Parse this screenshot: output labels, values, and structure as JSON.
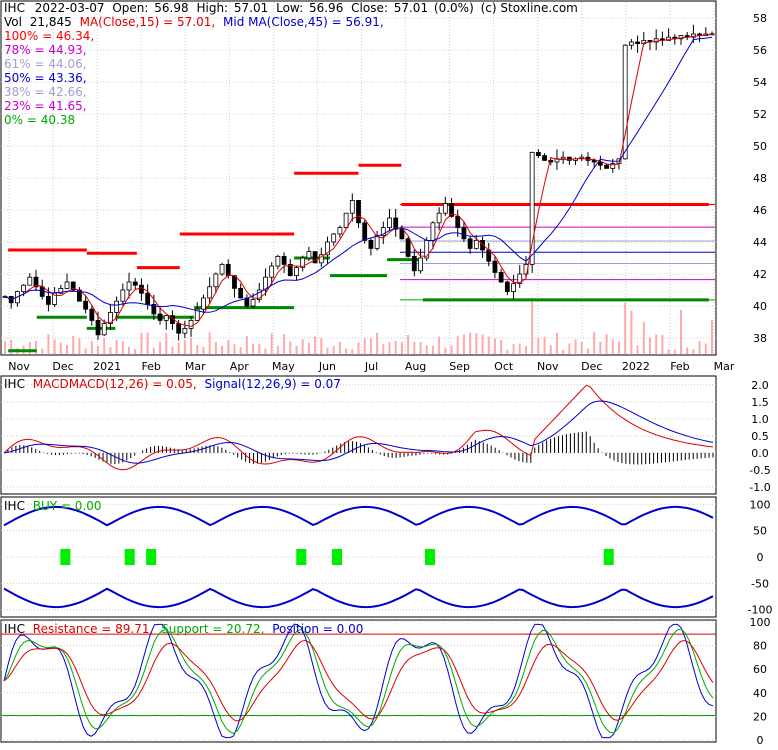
{
  "chart_data": [
    {
      "type": "candlestick",
      "panel": "price",
      "header": {
        "ticker": "IHC",
        "date": "2022-03-07",
        "open_label": "Open:",
        "open": "56.98",
        "high_label": "High:",
        "high": "57.01",
        "low_label": "Low:",
        "low": "56.96",
        "close_label": "Close:",
        "close": "57.01",
        "change": "(0.0%)",
        "source": "(c) Stoxline.com",
        "vol_label": "Vol",
        "vol": "21,845",
        "ma_short": "MA(Close,15) = 57.01,",
        "ma_mid": "Mid MA(Close,45) = 56.91,"
      },
      "fib_levels": [
        {
          "label": "100% = 46.34,",
          "value": 46.34,
          "color": "#ff0000"
        },
        {
          "label": "78% = 44.93,",
          "value": 44.93,
          "color": "#cc00cc"
        },
        {
          "label": "61% = 44.06,",
          "value": 44.06,
          "color": "#a0a0d0"
        },
        {
          "label": "50% = 43.36,",
          "value": 43.36,
          "color": "#0000cc"
        },
        {
          "label": "38% = 42.66,",
          "value": 42.66,
          "color": "#a0a0d0"
        },
        {
          "label": "23% = 41.65,",
          "value": 41.65,
          "color": "#cc00cc"
        },
        {
          "label": "0% = 40.38",
          "value": 40.38,
          "color": "#00aa00"
        }
      ],
      "y_ticks": [
        "38",
        "40",
        "42",
        "44",
        "46",
        "48",
        "50",
        "52",
        "54",
        "56",
        "58"
      ],
      "y_range": [
        37,
        59
      ],
      "x_ticks": [
        "Nov",
        "Dec",
        "2021",
        "Feb",
        "Mar",
        "Apr",
        "May",
        "Jun",
        "Jul",
        "Aug",
        "Sep",
        "Oct",
        "Nov",
        "Dec",
        "2022",
        "Feb",
        "Mar"
      ],
      "close_series": [
        40.6,
        40.2,
        40.9,
        41.3,
        41.8,
        41.2,
        40.6,
        40.1,
        40.8,
        41.1,
        41.5,
        41.0,
        40.3,
        39.8,
        39.1,
        38.2,
        38.9,
        39.6,
        40.3,
        41.0,
        41.5,
        41.3,
        40.8,
        40.1,
        39.5,
        39.1,
        39.4,
        38.9,
        38.3,
        38.6,
        39.1,
        39.8,
        40.5,
        41.2,
        42.0,
        42.6,
        41.9,
        41.1,
        40.5,
        40.0,
        40.4,
        41.0,
        41.8,
        42.5,
        43.1,
        42.6,
        41.9,
        42.4,
        43.0,
        43.4,
        42.7,
        43.2,
        44.0,
        44.5,
        44.9,
        45.8,
        46.6,
        45.2,
        44.1,
        43.6,
        44.4,
        44.9,
        45.5,
        44.8,
        44.2,
        43.1,
        42.2,
        43.0,
        44.1,
        45.2,
        45.8,
        46.4,
        45.6,
        44.9,
        44.2,
        43.6,
        44.1,
        43.5,
        42.8,
        42.1,
        41.5,
        40.9,
        41.4,
        42.0,
        42.6,
        49.6,
        49.4,
        49.1,
        49.0,
        49.2,
        49.3,
        49.1,
        49.2,
        49.3,
        49.1,
        49.0,
        48.8,
        48.6,
        48.9,
        49.2,
        56.3,
        56.5,
        56.4,
        56.6,
        56.5,
        56.7,
        56.6,
        56.8,
        56.7,
        56.9,
        56.8,
        57.0,
        56.9,
        57.0,
        57.01
      ],
      "resistance_segments": [
        {
          "x0": 0.01,
          "x1": 0.12,
          "y": 43.5
        },
        {
          "x0": 0.12,
          "x1": 0.19,
          "y": 43.3
        },
        {
          "x0": 0.19,
          "x1": 0.25,
          "y": 42.4
        },
        {
          "x0": 0.25,
          "x1": 0.41,
          "y": 44.5
        },
        {
          "x0": 0.41,
          "x1": 0.5,
          "y": 48.3
        },
        {
          "x0": 0.5,
          "x1": 0.56,
          "y": 48.8
        },
        {
          "x0": 0.56,
          "x1": 0.99,
          "y": 46.34
        }
      ],
      "support_segments": [
        {
          "x0": 0.01,
          "x1": 0.05,
          "y": 37.2
        },
        {
          "x0": 0.05,
          "x1": 0.12,
          "y": 39.3
        },
        {
          "x0": 0.12,
          "x1": 0.16,
          "y": 38.6
        },
        {
          "x0": 0.16,
          "x1": 0.27,
          "y": 39.3
        },
        {
          "x0": 0.27,
          "x1": 0.41,
          "y": 39.9
        },
        {
          "x0": 0.41,
          "x1": 0.46,
          "y": 43.0
        },
        {
          "x0": 0.46,
          "x1": 0.54,
          "y": 41.9
        },
        {
          "x0": 0.54,
          "x1": 0.59,
          "y": 42.9
        },
        {
          "x0": 0.59,
          "x1": 0.99,
          "y": 40.38
        }
      ]
    },
    {
      "type": "line",
      "panel": "macd",
      "title_ticker": "IHC",
      "macd_label": "MACDMACD(12,26) = 0.05,",
      "signal_label": "Signal(12,26,9) = 0.07",
      "y_ticks": [
        "2.0",
        "1.5",
        "1.0",
        "0.5",
        "0.0",
        "-0.5",
        "-1.0"
      ],
      "y_range": [
        -1.15,
        2.2
      ]
    },
    {
      "type": "line",
      "panel": "buy",
      "title_ticker": "IHC",
      "buy_label": "BUY = 0.00",
      "y_ticks": [
        "100",
        "50",
        "0",
        "-50",
        "-100"
      ],
      "y_range": [
        -110,
        110
      ]
    },
    {
      "type": "line",
      "panel": "stochastic",
      "title_ticker": "IHC",
      "resistance_label": "Resistance = 89.71,",
      "support_label": "Support = 20.72,",
      "position_label": "Position = 0.00",
      "y_ticks": [
        "100",
        "80",
        "60",
        "40",
        "20",
        "0"
      ],
      "y_range": [
        0,
        100
      ]
    }
  ],
  "colors": {
    "up": "#00aa00",
    "down": "#dd0000",
    "blue": "#0000cc",
    "purple": "#cc00cc",
    "grid": "#cccccc",
    "volume": "#ffaaaa"
  }
}
